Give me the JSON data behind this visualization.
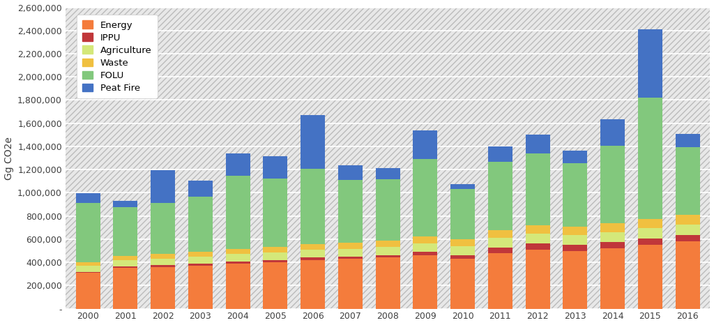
{
  "years": [
    2000,
    2001,
    2002,
    2003,
    2004,
    2005,
    2006,
    2007,
    2008,
    2009,
    2010,
    2011,
    2012,
    2013,
    2014,
    2015,
    2016
  ],
  "Energy": [
    310000,
    350000,
    360000,
    370000,
    390000,
    400000,
    420000,
    430000,
    440000,
    460000,
    430000,
    480000,
    510000,
    500000,
    520000,
    550000,
    580000
  ],
  "IPPU": [
    8000,
    15000,
    18000,
    18000,
    18000,
    20000,
    22000,
    18000,
    22000,
    28000,
    32000,
    50000,
    55000,
    50000,
    55000,
    55000,
    55000
  ],
  "Agriculture": [
    50000,
    52000,
    55000,
    58000,
    62000,
    65000,
    68000,
    70000,
    72000,
    75000,
    78000,
    80000,
    82000,
    84000,
    86000,
    88000,
    92000
  ],
  "Waste": [
    35000,
    38000,
    40000,
    42000,
    45000,
    48000,
    50000,
    52000,
    54000,
    58000,
    62000,
    65000,
    70000,
    72000,
    76000,
    78000,
    85000
  ],
  "FOLU": [
    510000,
    420000,
    440000,
    480000,
    630000,
    590000,
    650000,
    540000,
    530000,
    670000,
    430000,
    590000,
    620000,
    550000,
    670000,
    1050000,
    580000
  ],
  "Peat_Fire": [
    85000,
    55000,
    280000,
    135000,
    195000,
    195000,
    460000,
    125000,
    95000,
    250000,
    45000,
    135000,
    165000,
    105000,
    225000,
    590000,
    115000
  ],
  "colors": {
    "Energy": "#F47C3C",
    "IPPU": "#C0373A",
    "Agriculture": "#D4E87A",
    "Waste": "#F0C040",
    "FOLU": "#82C87D",
    "Peat_Fire": "#4472C4"
  },
  "ylim": [
    0,
    2600000
  ],
  "yticks": [
    0,
    200000,
    400000,
    600000,
    800000,
    1000000,
    1200000,
    1400000,
    1600000,
    1800000,
    2000000,
    2200000,
    2400000,
    2600000
  ],
  "ylabel": "Gg CO2e",
  "plot_bg": "#E8E8E8",
  "fig_bg": "#FFFFFF",
  "grid_color": "#FFFFFF",
  "hatch_color": "#CCCCCC",
  "legend_labels": [
    "Energy",
    "IPPU",
    "Agriculture",
    "Waste",
    "FOLU",
    "Peat Fire"
  ]
}
